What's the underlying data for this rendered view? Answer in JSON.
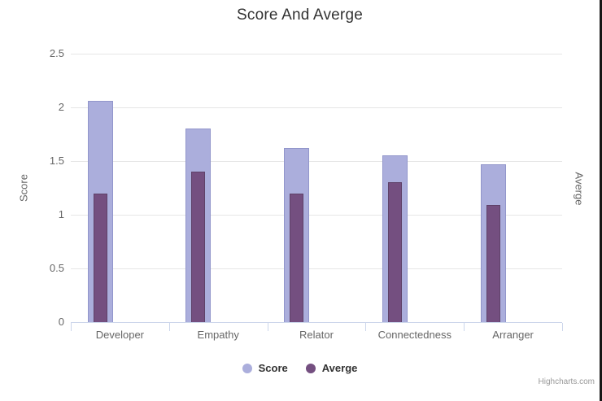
{
  "chart_data": {
    "type": "bar",
    "title": "Score And Averge",
    "categories": [
      "Developer",
      "Empathy",
      "Relator",
      "Connectedness",
      "Arranger"
    ],
    "series": [
      {
        "name": "Score",
        "color": "#ABAEDC",
        "border_color": "#9296CB",
        "values": [
          2.06,
          1.8,
          1.62,
          1.55,
          1.47
        ]
      },
      {
        "name": "Averge",
        "color": "#744F80",
        "border_color": "#5E4168",
        "values": [
          1.2,
          1.4,
          1.2,
          1.3,
          1.09
        ]
      }
    ],
    "xlabel": "",
    "ylabel": "Score",
    "y2label": "Averge",
    "ylim": [
      0,
      2.5
    ],
    "ytick_step": 0.5,
    "yticks": [
      "2.5",
      "2",
      "1.5",
      "1",
      "0.5",
      "0"
    ],
    "grid": true,
    "gridline_color": "#E6E6E6",
    "axis_line_color": "#CCD6EB",
    "legend_position": "bottom"
  },
  "footer": {
    "credit": "Highcharts.com"
  }
}
